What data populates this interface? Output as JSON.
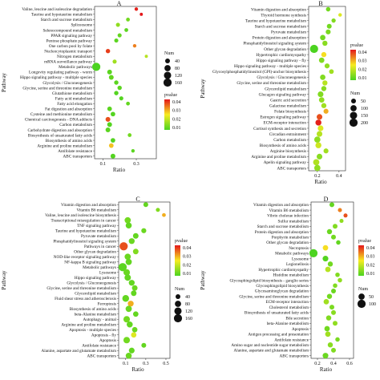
{
  "chart_data": [
    {
      "type": "scatter",
      "panel": "A",
      "xlabel": "Ratio",
      "ylabel": "Pathway",
      "xlim": [
        0.05,
        0.42
      ],
      "xticks": [
        0.1,
        0.3
      ],
      "categories": [
        "Valine, leucine and isoleucine degradation",
        "Taurine and hypotaurine metabolism",
        "Starch and sucrose metabolism",
        "Spliceosome",
        "Selenocompound metabolism",
        "PPAR signaling pathway",
        "Pentose phosphate pathway",
        "One carbon pool by folate",
        "Nucleocytoplasmic transport",
        "Nitrogen metabolism",
        "mRNA surveillance pathway",
        "Metabolic pathways",
        "Longevity regulating pathway - worm",
        "Hippo signaling pathway - multiple species",
        "Glycolysis / Gluconeogenesis",
        "Glycine, serine and threonine metabolism",
        "Glutathione metabolism",
        "Fatty acid metabolism",
        "Fatty acid elongation",
        "Fat digestion and absorption",
        "Cysteine and methionine metabolism",
        "Chemical carcinogenesis - DNA adducts",
        "Carbon metabolism",
        "Carbohydrate digestion and absorption",
        "Biosynthesis of unsaturated fatty acids",
        "Biosynthesis of amino acids",
        "Arginine and proline metabolism",
        "Antifolate resistance",
        "ABC transporters"
      ],
      "points": [
        {
          "ratio": 0.3,
          "num": 15,
          "pvalue": 0.045
        },
        {
          "ratio": 0.33,
          "num": 10,
          "pvalue": 0.048
        },
        {
          "ratio": 0.25,
          "num": 20,
          "pvalue": 0.006
        },
        {
          "ratio": 0.19,
          "num": 25,
          "pvalue": 0.01
        },
        {
          "ratio": 0.24,
          "num": 20,
          "pvalue": 0.003
        },
        {
          "ratio": 0.2,
          "num": 25,
          "pvalue": 0.004
        },
        {
          "ratio": 0.18,
          "num": 25,
          "pvalue": 0.003
        },
        {
          "ratio": 0.29,
          "num": 15,
          "pvalue": 0.035
        },
        {
          "ratio": 0.13,
          "num": 30,
          "pvalue": 0.042
        },
        {
          "ratio": 0.36,
          "num": 10,
          "pvalue": 0.015
        },
        {
          "ratio": 0.17,
          "num": 25,
          "pvalue": 0.012
        },
        {
          "ratio": 0.06,
          "num": 160,
          "pvalue": 0.001
        },
        {
          "ratio": 0.14,
          "num": 40,
          "pvalue": 0.003
        },
        {
          "ratio": 0.15,
          "num": 40,
          "pvalue": 0.004
        },
        {
          "ratio": 0.18,
          "num": 30,
          "pvalue": 0.003
        },
        {
          "ratio": 0.2,
          "num": 30,
          "pvalue": 0.003
        },
        {
          "ratio": 0.18,
          "num": 30,
          "pvalue": 0.002
        },
        {
          "ratio": 0.21,
          "num": 25,
          "pvalue": 0.002
        },
        {
          "ratio": 0.25,
          "num": 20,
          "pvalue": 0.004
        },
        {
          "ratio": 0.14,
          "num": 35,
          "pvalue": 0.003
        },
        {
          "ratio": 0.16,
          "num": 35,
          "pvalue": 0.002
        },
        {
          "ratio": 0.13,
          "num": 40,
          "pvalue": 0.04
        },
        {
          "ratio": 0.14,
          "num": 40,
          "pvalue": 0.002
        },
        {
          "ratio": 0.13,
          "num": 40,
          "pvalue": 0.003
        },
        {
          "ratio": 0.26,
          "num": 20,
          "pvalue": 0.006
        },
        {
          "ratio": 0.16,
          "num": 35,
          "pvalue": 0.002
        },
        {
          "ratio": 0.15,
          "num": 35,
          "pvalue": 0.028
        },
        {
          "ratio": 0.28,
          "num": 15,
          "pvalue": 0.003
        },
        {
          "ratio": 0.16,
          "num": 40,
          "pvalue": 0.002
        }
      ],
      "size_legend": {
        "title": "Num",
        "values": [
          40,
          80,
          120,
          160
        ]
      },
      "color_legend": {
        "title": "pvalue",
        "ticks": [
          0.04,
          0.03,
          0.02,
          0.01
        ],
        "low_color": "#4cd320",
        "high_color": "#e3171a"
      }
    },
    {
      "type": "scatter",
      "panel": "B",
      "xlabel": "Ratio",
      "ylabel": "Pathway",
      "xlim": [
        0.12,
        0.46
      ],
      "xticks": [
        0.2,
        0.4
      ],
      "categories": [
        "Vitamin digestion and absorption",
        "Thyroid hormone synthesis",
        "Taurine and hypotaurine metabolism",
        "Starch and sucrose metabolism",
        "Pyruvate metabolism",
        "Protein digestion and absorption",
        "Phosphatidylinositol signaling system",
        "Other glycan degradation",
        "Hypertrophic cardiomyopathy",
        "Hippo signaling pathway - fly",
        "Hippo signaling pathway - multiple species",
        "Glycosylphosphatidylinositol (GPI)-anchor biosynthesis",
        "Glycolysis / Gluconeogenesis",
        "Glycine, serine and threonine metabolism",
        "Glycerolipid metabolism",
        "Glucagon signaling pathway",
        "Gastric acid secretion",
        "Galactose metabolism",
        "Folate biosynthesis",
        "Estrogen signaling pathway",
        "ECM-receptor interaction",
        "Cortisol synthesis and secretion",
        "Circadian entrainment",
        "Carbon metabolism",
        "Biosynthesis of amino acids",
        "Arginine biosynthesis",
        "Arginine and proline metabolism",
        "Apelin signaling pathway",
        "ABC transporters"
      ],
      "points": [
        {
          "ratio": 0.3,
          "num": 40,
          "pvalue": 0.006
        },
        {
          "ratio": 0.41,
          "num": 20,
          "pvalue": 0.02
        },
        {
          "ratio": 0.35,
          "num": 35,
          "pvalue": 0.008
        },
        {
          "ratio": 0.31,
          "num": 50,
          "pvalue": 0.006
        },
        {
          "ratio": 0.3,
          "num": 55,
          "pvalue": 0.007
        },
        {
          "ratio": 0.25,
          "num": 70,
          "pvalue": 0.006
        },
        {
          "ratio": 0.27,
          "num": 60,
          "pvalue": 0.009
        },
        {
          "ratio": 0.17,
          "num": 200,
          "pvalue": 0.001
        },
        {
          "ratio": 0.26,
          "num": 60,
          "pvalue": 0.025
        },
        {
          "ratio": 0.24,
          "num": 70,
          "pvalue": 0.008
        },
        {
          "ratio": 0.29,
          "num": 55,
          "pvalue": 0.01
        },
        {
          "ratio": 0.33,
          "num": 45,
          "pvalue": 0.012
        },
        {
          "ratio": 0.25,
          "num": 70,
          "pvalue": 0.008
        },
        {
          "ratio": 0.27,
          "num": 60,
          "pvalue": 0.015
        },
        {
          "ratio": 0.26,
          "num": 60,
          "pvalue": 0.009
        },
        {
          "ratio": 0.23,
          "num": 80,
          "pvalue": 0.008
        },
        {
          "ratio": 0.24,
          "num": 70,
          "pvalue": 0.01
        },
        {
          "ratio": 0.26,
          "num": 60,
          "pvalue": 0.012
        },
        {
          "ratio": 0.28,
          "num": 55,
          "pvalue": 0.03
        },
        {
          "ratio": 0.22,
          "num": 80,
          "pvalue": 0.04
        },
        {
          "ratio": 0.21,
          "num": 90,
          "pvalue": 0.045
        },
        {
          "ratio": 0.23,
          "num": 80,
          "pvalue": 0.02
        },
        {
          "ratio": 0.22,
          "num": 80,
          "pvalue": 0.015
        },
        {
          "ratio": 0.2,
          "num": 100,
          "pvalue": 0.01
        },
        {
          "ratio": 0.21,
          "num": 90,
          "pvalue": 0.018
        },
        {
          "ratio": 0.28,
          "num": 55,
          "pvalue": 0.012
        },
        {
          "ratio": 0.22,
          "num": 80,
          "pvalue": 0.009
        },
        {
          "ratio": 0.19,
          "num": 100,
          "pvalue": 0.014
        },
        {
          "ratio": 0.2,
          "num": 100,
          "pvalue": 0.01
        }
      ],
      "size_legend": {
        "title": "Num",
        "values": [
          50,
          100,
          150,
          200
        ]
      },
      "color_legend": {
        "title": "pvalue",
        "ticks": [
          0.04,
          0.03,
          0.02,
          0.01
        ],
        "low_color": "#4cd320",
        "high_color": "#e3171a"
      }
    },
    {
      "type": "scatter",
      "panel": "C",
      "xlabel": "Ratio",
      "ylabel": "Pathway",
      "xlim": [
        0.03,
        0.54
      ],
      "xticks": [
        0.1,
        0.3,
        0.5
      ],
      "categories": [
        "Vitamin digestion and absorption",
        "Vitamin B6 metabolism",
        "Valine, leucine and isoleucine biosynthesis",
        "Transcriptional misregulation in cancer",
        "TNF signaling pathway",
        "Taurine and hypotaurine metabolism",
        "Pyruvate metabolism",
        "Phosphatidylinositol signaling system",
        "Pathways in cancer",
        "Other glycan degradation",
        "NOD-like receptor signaling pathway",
        "NF-kappa B signaling pathway",
        "Metabolic pathways",
        "Lysosome",
        "Hippo signaling pathway",
        "Glycolysis / Gluconeogenesis",
        "Glycine, serine and threonine metabolism",
        "Glycerolipid metabolism",
        "Fluid shear stress and atherosclerosis",
        "Ferroptosis",
        "Biosynthesis of amino acids",
        "beta-Alanine metabolism",
        "Autophagy - animal",
        "Arginine and proline metabolism",
        "Apoptosis - multiple species",
        "Apoptosis - fly",
        "Apoptosis",
        "Antifolate resistance",
        "Alanine, aspartate and glutamate metabolism",
        "ABC transporters"
      ],
      "points": [
        {
          "ratio": 0.3,
          "num": 40,
          "pvalue": 0.004
        },
        {
          "ratio": 0.42,
          "num": 25,
          "pvalue": 0.008
        },
        {
          "ratio": 0.48,
          "num": 20,
          "pvalue": 0.03
        },
        {
          "ratio": 0.12,
          "num": 80,
          "pvalue": 0.006
        },
        {
          "ratio": 0.13,
          "num": 75,
          "pvalue": 0.004
        },
        {
          "ratio": 0.28,
          "num": 45,
          "pvalue": 0.005
        },
        {
          "ratio": 0.2,
          "num": 60,
          "pvalue": 0.004
        },
        {
          "ratio": 0.16,
          "num": 70,
          "pvalue": 0.005
        },
        {
          "ratio": 0.08,
          "num": 160,
          "pvalue": 0.04
        },
        {
          "ratio": 0.2,
          "num": 60,
          "pvalue": 0.008
        },
        {
          "ratio": 0.12,
          "num": 80,
          "pvalue": 0.005
        },
        {
          "ratio": 0.13,
          "num": 80,
          "pvalue": 0.004
        },
        {
          "ratio": 0.07,
          "num": 160,
          "pvalue": 0.003
        },
        {
          "ratio": 0.11,
          "num": 90,
          "pvalue": 0.005
        },
        {
          "ratio": 0.12,
          "num": 85,
          "pvalue": 0.004
        },
        {
          "ratio": 0.16,
          "num": 70,
          "pvalue": 0.004
        },
        {
          "ratio": 0.19,
          "num": 60,
          "pvalue": 0.005
        },
        {
          "ratio": 0.18,
          "num": 60,
          "pvalue": 0.004
        },
        {
          "ratio": 0.1,
          "num": 100,
          "pvalue": 0.004
        },
        {
          "ratio": 0.15,
          "num": 70,
          "pvalue": 0.03
        },
        {
          "ratio": 0.13,
          "num": 80,
          "pvalue": 0.005
        },
        {
          "ratio": 0.2,
          "num": 55,
          "pvalue": 0.004
        },
        {
          "ratio": 0.11,
          "num": 90,
          "pvalue": 0.006
        },
        {
          "ratio": 0.14,
          "num": 75,
          "pvalue": 0.004
        },
        {
          "ratio": 0.19,
          "num": 55,
          "pvalue": 0.005
        },
        {
          "ratio": 0.18,
          "num": 55,
          "pvalue": 0.02
        },
        {
          "ratio": 0.11,
          "num": 90,
          "pvalue": 0.006
        },
        {
          "ratio": 0.28,
          "num": 40,
          "pvalue": 0.004
        },
        {
          "ratio": 0.16,
          "num": 65,
          "pvalue": 0.004
        },
        {
          "ratio": 0.13,
          "num": 75,
          "pvalue": 0.005
        }
      ],
      "size_legend": {
        "title": "Num",
        "values": [
          40,
          80,
          120,
          160
        ]
      },
      "color_legend": {
        "title": "pvalue",
        "ticks": [
          0.04,
          0.03,
          0.02,
          0.01
        ],
        "low_color": "#4cd320",
        "high_color": "#e3171a"
      }
    },
    {
      "type": "scatter",
      "panel": "D",
      "xlabel": "Ratio",
      "ylabel": "Pathway",
      "xlim": [
        0.12,
        0.65
      ],
      "xticks": [
        0.2,
        0.4,
        0.6
      ],
      "categories": [
        "Vitamin digestion and absorption",
        "Vitamin B6 metabolism",
        "Vibrio cholerae infection",
        "Sulfur metabolism",
        "Starch and sucrose metabolism",
        "Protein digestion and absorption",
        "Porphyrin metabolism",
        "Other glycan degradation",
        "Necroptosis",
        "Metabolic pathways",
        "Lysosome",
        "Legionellosis",
        "Hypertrophic cardiomyopathy",
        "Histidine metabolism",
        "Glycosphingolipid biosynthesis - ganglio series",
        "Glycosphingolipid biosynthesis",
        "Glycosaminoglycan degradation",
        "Glycine, serine and threonine metabolism",
        "ECM-receptor interaction",
        "Cholesterol metabolism",
        "Biosynthesis of unsaturated fatty acids",
        "Bile secretion",
        "beta-Alanine metabolism",
        "Apoptosis",
        "Antigen processing and presentation",
        "Antifolate resistance",
        "Amino sugar and nucleotide sugar metabolism",
        "Alanine, aspartate and glutamate metabolism",
        "ABC transporters"
      ],
      "points": [
        {
          "ratio": 0.38,
          "num": 25,
          "pvalue": 0.004
        },
        {
          "ratio": 0.48,
          "num": 15,
          "pvalue": 0.035
        },
        {
          "ratio": 0.55,
          "num": 15,
          "pvalue": 0.04
        },
        {
          "ratio": 0.5,
          "num": 15,
          "pvalue": 0.01
        },
        {
          "ratio": 0.42,
          "num": 25,
          "pvalue": 0.008
        },
        {
          "ratio": 0.35,
          "num": 30,
          "pvalue": 0.005
        },
        {
          "ratio": 0.4,
          "num": 25,
          "pvalue": 0.006
        },
        {
          "ratio": 0.46,
          "num": 20,
          "pvalue": 0.004
        },
        {
          "ratio": 0.3,
          "num": 35,
          "pvalue": 0.025
        },
        {
          "ratio": 0.15,
          "num": 100,
          "pvalue": 0.001
        },
        {
          "ratio": 0.3,
          "num": 40,
          "pvalue": 0.002
        },
        {
          "ratio": 0.36,
          "num": 30,
          "pvalue": 0.006
        },
        {
          "ratio": 0.33,
          "num": 35,
          "pvalue": 0.015
        },
        {
          "ratio": 0.45,
          "num": 20,
          "pvalue": 0.008
        },
        {
          "ratio": 0.48,
          "num": 20,
          "pvalue": 0.01
        },
        {
          "ratio": 0.42,
          "num": 20,
          "pvalue": 0.008
        },
        {
          "ratio": 0.4,
          "num": 25,
          "pvalue": 0.005
        },
        {
          "ratio": 0.35,
          "num": 30,
          "pvalue": 0.006
        },
        {
          "ratio": 0.31,
          "num": 35,
          "pvalue": 0.012
        },
        {
          "ratio": 0.38,
          "num": 25,
          "pvalue": 0.007
        },
        {
          "ratio": 0.4,
          "num": 25,
          "pvalue": 0.009
        },
        {
          "ratio": 0.34,
          "num": 30,
          "pvalue": 0.008
        },
        {
          "ratio": 0.42,
          "num": 25,
          "pvalue": 0.01
        },
        {
          "ratio": 0.32,
          "num": 35,
          "pvalue": 0.006
        },
        {
          "ratio": 0.33,
          "num": 35,
          "pvalue": 0.012
        },
        {
          "ratio": 0.45,
          "num": 20,
          "pvalue": 0.007
        },
        {
          "ratio": 0.36,
          "num": 30,
          "pvalue": 0.009
        },
        {
          "ratio": 0.4,
          "num": 25,
          "pvalue": 0.008
        },
        {
          "ratio": 0.3,
          "num": 40,
          "pvalue": 0.005
        }
      ],
      "size_legend": {
        "title": "Num",
        "values": [
          50,
          100
        ]
      },
      "color_legend": {
        "title": "pvalue",
        "ticks": [
          0.04,
          0.03,
          0.02,
          0.01
        ],
        "low_color": "#4cd320",
        "high_color": "#e3171a"
      }
    }
  ]
}
